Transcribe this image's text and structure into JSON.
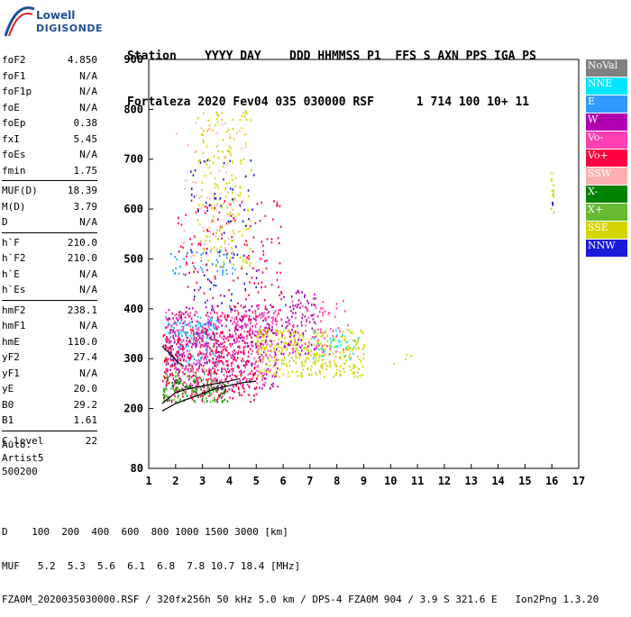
{
  "logo": {
    "line1": "Lowell",
    "line2": "DIGISONDE"
  },
  "header": {
    "labels": "Station    YYYY DAY    DDD HHMMSS P1  FFS S AXN PPS IGA PS",
    "values": "Fortaleza 2020 Fev04 035 030000 RSF      1 714 100 10+ 11"
  },
  "params": {
    "group1": [
      {
        "label": "foF2",
        "value": "4.850"
      },
      {
        "label": "foF1",
        "value": "N/A"
      },
      {
        "label": "foF1p",
        "value": "N/A"
      },
      {
        "label": "foE",
        "value": "N/A"
      },
      {
        "label": "foEp",
        "value": "0.38"
      },
      {
        "label": "fxI",
        "value": "5.45"
      },
      {
        "label": "foEs",
        "value": "N/A"
      },
      {
        "label": "fmin",
        "value": "1.75"
      }
    ],
    "group2": [
      {
        "label": "MUF(D)",
        "value": "18.39"
      },
      {
        "label": "M(D)",
        "value": "3.79"
      },
      {
        "label": "D",
        "value": "N/A"
      }
    ],
    "group3": [
      {
        "label": "h`F",
        "value": "210.0"
      },
      {
        "label": "h`F2",
        "value": "210.0"
      },
      {
        "label": "h`E",
        "value": "N/A"
      },
      {
        "label": "h`Es",
        "value": "N/A"
      }
    ],
    "group4": [
      {
        "label": "hmF2",
        "value": "238.1"
      },
      {
        "label": "hmF1",
        "value": "N/A"
      },
      {
        "label": "hmE",
        "value": "110.0"
      },
      {
        "label": "yF2",
        "value": "27.4"
      },
      {
        "label": "yF1",
        "value": "N/A"
      },
      {
        "label": "yE",
        "value": "20.0"
      },
      {
        "label": "B0",
        "value": "29.2"
      },
      {
        "label": "B1",
        "value": "1.61"
      }
    ],
    "group5": [
      {
        "label": "C-level",
        "value": "22"
      }
    ]
  },
  "auto": {
    "line1": "Auto:",
    "line2": "Artist5",
    "line3": "500200"
  },
  "legend": [
    {
      "label": "NoVal",
      "color": "#808080"
    },
    {
      "label": "NNE",
      "color": "#00e5ff"
    },
    {
      "label": "E",
      "color": "#3399ff"
    },
    {
      "label": "W",
      "color": "#b000b0"
    },
    {
      "label": "Vo-",
      "color": "#ff40b0"
    },
    {
      "label": "Vo+",
      "color": "#ff0040"
    },
    {
      "label": "SSW",
      "color": "#ffb0b0"
    },
    {
      "label": "X-",
      "color": "#008000"
    },
    {
      "label": "X+",
      "color": "#66bb33"
    },
    {
      "label": "SSE",
      "color": "#d4d400"
    },
    {
      "label": "NNW",
      "color": "#1a1ad9"
    }
  ],
  "chart_data": {
    "type": "scatter",
    "xlim": [
      1,
      17
    ],
    "ylim": [
      80,
      900
    ],
    "x_ticks": [
      1,
      2,
      3,
      4,
      5,
      6,
      7,
      8,
      9,
      10,
      11,
      12,
      13,
      14,
      15,
      16,
      17
    ],
    "y_ticks": [
      80,
      200,
      300,
      400,
      500,
      600,
      700,
      800,
      900
    ],
    "grid": false,
    "legend_placement": "right",
    "clusters": [
      {
        "name": "NNE",
        "x": [
          1.6,
          3.4
        ],
        "y": [
          340,
          390
        ],
        "n": 40
      },
      {
        "name": "E",
        "x": [
          1.7,
          3.6
        ],
        "y": [
          290,
          380
        ],
        "n": 140
      },
      {
        "name": "E",
        "x": [
          1.8,
          4.2
        ],
        "y": [
          470,
          520
        ],
        "n": 50
      },
      {
        "name": "W",
        "x": [
          1.6,
          5.8
        ],
        "y": [
          240,
          410
        ],
        "n": 380
      },
      {
        "name": "Vo-",
        "x": [
          1.6,
          5.8
        ],
        "y": [
          250,
          400
        ],
        "n": 380
      },
      {
        "name": "Vo+",
        "x": [
          1.5,
          5.0
        ],
        "y": [
          215,
          360
        ],
        "n": 320
      },
      {
        "name": "Vo+",
        "x": [
          2.0,
          6.0
        ],
        "y": [
          380,
          620
        ],
        "n": 160
      },
      {
        "name": "SSW",
        "x": [
          2.0,
          4.6
        ],
        "y": [
          500,
          800
        ],
        "n": 60
      },
      {
        "name": "X-",
        "x": [
          1.5,
          4.0
        ],
        "y": [
          215,
          260
        ],
        "n": 80
      },
      {
        "name": "X+",
        "x": [
          1.5,
          3.5
        ],
        "y": [
          215,
          280
        ],
        "n": 80
      },
      {
        "name": "SSE",
        "x": [
          2.8,
          4.8
        ],
        "y": [
          480,
          800
        ],
        "n": 170
      },
      {
        "name": "SSE",
        "x": [
          5.0,
          9.0
        ],
        "y": [
          265,
          360
        ],
        "n": 340
      },
      {
        "name": "NNW",
        "x": [
          2.5,
          5.0
        ],
        "y": [
          400,
          700
        ],
        "n": 70
      },
      {
        "name": "W",
        "x": [
          5.9,
          7.2
        ],
        "y": [
          310,
          440
        ],
        "n": 90
      },
      {
        "name": "Vo-",
        "x": [
          6.2,
          8.4
        ],
        "y": [
          310,
          420
        ],
        "n": 70
      },
      {
        "name": "NNE",
        "x": [
          7.0,
          8.8
        ],
        "y": [
          300,
          360
        ],
        "n": 30
      },
      {
        "name": "SSE",
        "x": [
          10.0,
          10.8
        ],
        "y": [
          290,
          310
        ],
        "n": 4
      },
      {
        "name": "SSE",
        "x": [
          15.95,
          16.05
        ],
        "y": [
          595,
          675
        ],
        "n": 14
      },
      {
        "name": "NNW",
        "x": [
          15.98,
          16.02
        ],
        "y": [
          600,
          630
        ],
        "n": 3
      }
    ],
    "profile_curve": [
      [
        1.5,
        195
      ],
      [
        2.0,
        210
      ],
      [
        2.5,
        220
      ],
      [
        3.0,
        230
      ],
      [
        3.5,
        240
      ],
      [
        4.0,
        246
      ],
      [
        4.5,
        252
      ],
      [
        5.0,
        255
      ]
    ],
    "leading_edge_curve": [
      [
        1.5,
        210
      ],
      [
        2.0,
        232
      ],
      [
        2.5,
        240
      ],
      [
        3.0,
        245
      ],
      [
        3.5,
        250
      ],
      [
        4.0,
        255
      ],
      [
        4.4,
        260
      ]
    ],
    "upper_curve": [
      [
        1.5,
        325
      ],
      [
        1.8,
        310
      ],
      [
        2.1,
        292
      ],
      [
        2.3,
        285
      ]
    ]
  },
  "footer": {
    "line1": "D    100  200  400  600  800 1000 1500 3000 [km]",
    "line2": "MUF   5.2  5.3  5.6  6.1  6.8  7.8 10.7 18.4 [MHz]",
    "line3": "FZA0M_2020035030000.RSF / 320fx256h 50 kHz 5.0 km / DPS-4 FZA0M 904 / 3.9 S 321.6 E   Ion2Png 1.3.20"
  }
}
